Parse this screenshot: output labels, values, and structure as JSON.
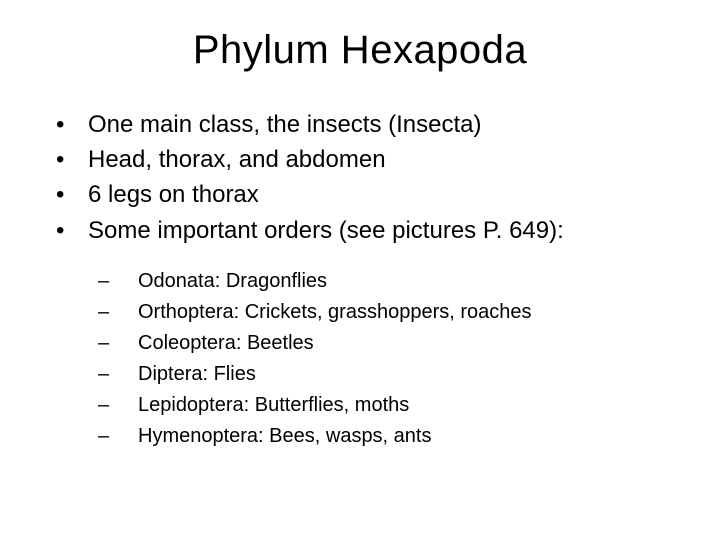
{
  "slide": {
    "title": "Phylum Hexapoda",
    "background_color": "#ffffff",
    "text_color": "#000000",
    "title_fontsize": 40,
    "body_fontsize": 24,
    "sub_fontsize": 20,
    "font_family": "Arial",
    "bullets": [
      {
        "text": "One main class, the insects (Insecta)"
      },
      {
        "text": "Head, thorax, and abdomen"
      },
      {
        "text": "6 legs on thorax"
      },
      {
        "text": "Some important orders (see pictures P. 649):"
      }
    ],
    "sub_bullets": [
      {
        "text": "Odonata: Dragonflies"
      },
      {
        "text": "Orthoptera: Crickets, grasshoppers, roaches"
      },
      {
        "text": "Coleoptera: Beetles"
      },
      {
        "text": "Diptera: Flies"
      },
      {
        "text": "Lepidoptera: Butterflies, moths"
      },
      {
        "text": "Hymenoptera: Bees, wasps, ants"
      }
    ],
    "bullet_marker": "•",
    "sub_marker": "–"
  }
}
